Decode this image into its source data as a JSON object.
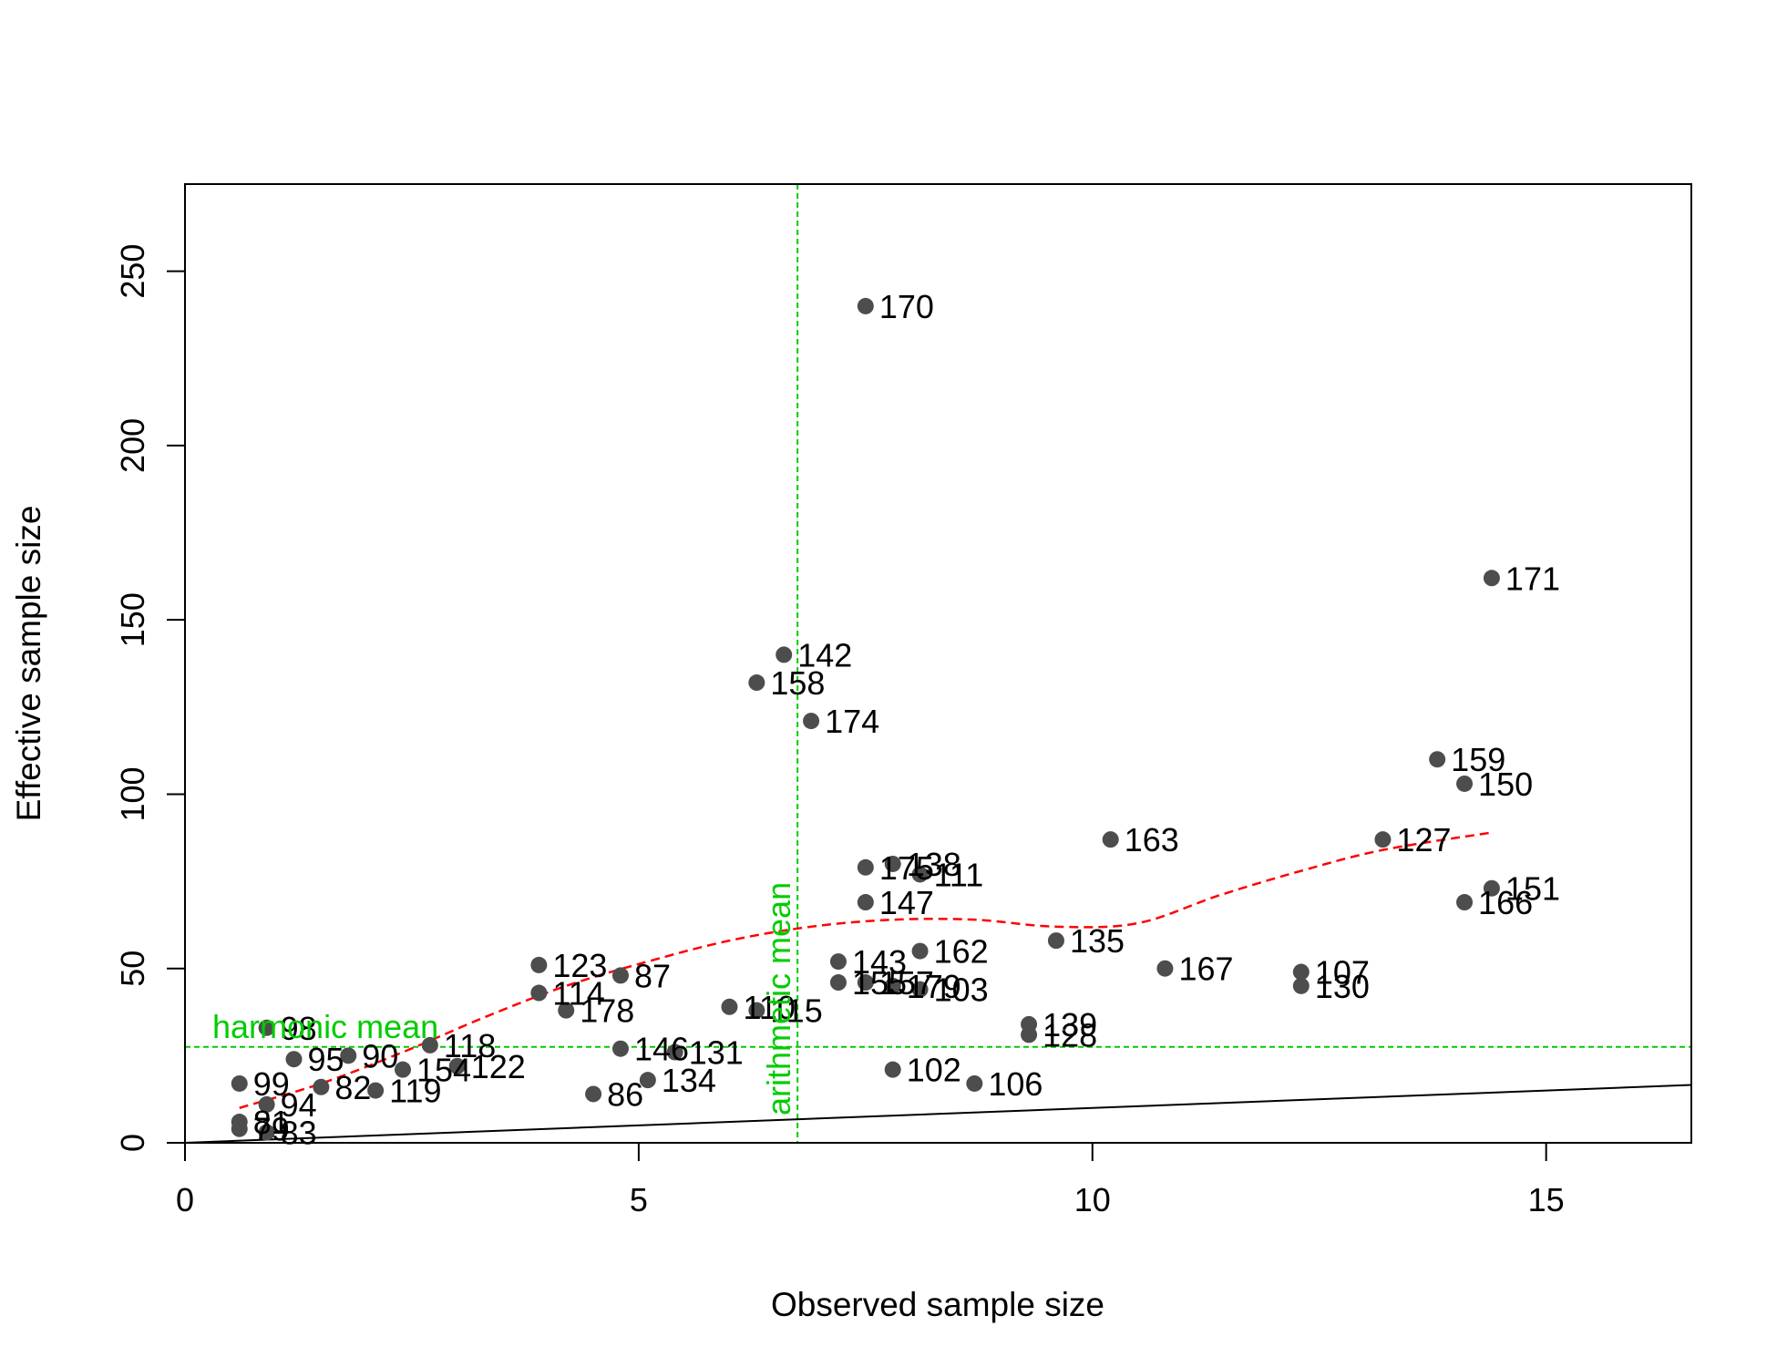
{
  "chart_data": {
    "type": "scatter",
    "title": "",
    "xlabel": "Observed sample size",
    "ylabel": "Effective sample size",
    "xlim": [
      0,
      16.6
    ],
    "ylim": [
      0,
      275
    ],
    "xticks": [
      0,
      5,
      10,
      15
    ],
    "yticks": [
      0,
      50,
      100,
      150,
      200,
      250
    ],
    "grid": false,
    "legend": "none",
    "colors": {
      "points": "#4d4d4d",
      "smooth": "#ff0000",
      "reference": "#00cc00",
      "identity": "#000000"
    },
    "points": [
      {
        "label": "170",
        "x": 7.5,
        "y": 240
      },
      {
        "label": "171",
        "x": 14.4,
        "y": 162
      },
      {
        "label": "142",
        "x": 6.6,
        "y": 140
      },
      {
        "label": "158",
        "x": 6.3,
        "y": 132
      },
      {
        "label": "174",
        "x": 6.9,
        "y": 121
      },
      {
        "label": "159",
        "x": 13.8,
        "y": 110
      },
      {
        "label": "150",
        "x": 14.1,
        "y": 103
      },
      {
        "label": "163",
        "x": 10.2,
        "y": 87
      },
      {
        "label": "127",
        "x": 13.2,
        "y": 87
      },
      {
        "label": "175",
        "x": 7.5,
        "y": 79
      },
      {
        "label": "138",
        "x": 7.8,
        "y": 80
      },
      {
        "label": "111",
        "x": 8.1,
        "y": 77
      },
      {
        "label": "147",
        "x": 7.5,
        "y": 69
      },
      {
        "label": "151",
        "x": 14.4,
        "y": 73
      },
      {
        "label": "166",
        "x": 14.1,
        "y": 69
      },
      {
        "label": "135",
        "x": 9.6,
        "y": 58
      },
      {
        "label": "162",
        "x": 8.1,
        "y": 55
      },
      {
        "label": "143",
        "x": 7.2,
        "y": 52
      },
      {
        "label": "123",
        "x": 3.9,
        "y": 51
      },
      {
        "label": "167",
        "x": 10.8,
        "y": 50
      },
      {
        "label": "107",
        "x": 12.3,
        "y": 49
      },
      {
        "label": "87",
        "x": 4.8,
        "y": 48
      },
      {
        "label": "130",
        "x": 12.3,
        "y": 45
      },
      {
        "label": "155",
        "x": 7.2,
        "y": 46
      },
      {
        "label": "157",
        "x": 7.5,
        "y": 46
      },
      {
        "label": "179",
        "x": 7.8,
        "y": 45
      },
      {
        "label": "103",
        "x": 8.1,
        "y": 44
      },
      {
        "label": "114",
        "x": 3.9,
        "y": 43
      },
      {
        "label": "110",
        "x": 6.0,
        "y": 39
      },
      {
        "label": "115",
        "x": 6.3,
        "y": 38
      },
      {
        "label": "178",
        "x": 4.2,
        "y": 38
      },
      {
        "label": "139",
        "x": 9.3,
        "y": 34
      },
      {
        "label": "128",
        "x": 9.3,
        "y": 31
      },
      {
        "label": "98",
        "x": 0.9,
        "y": 33
      },
      {
        "label": "118",
        "x": 2.7,
        "y": 28
      },
      {
        "label": "146",
        "x": 4.8,
        "y": 27
      },
      {
        "label": "131",
        "x": 5.4,
        "y": 26
      },
      {
        "label": "90",
        "x": 1.8,
        "y": 25
      },
      {
        "label": "95",
        "x": 1.2,
        "y": 24
      },
      {
        "label": "154",
        "x": 2.4,
        "y": 21
      },
      {
        "label": "122",
        "x": 3.0,
        "y": 22
      },
      {
        "label": "102",
        "x": 7.8,
        "y": 21
      },
      {
        "label": "134",
        "x": 5.1,
        "y": 18
      },
      {
        "label": "106",
        "x": 8.7,
        "y": 17
      },
      {
        "label": "99",
        "x": 0.6,
        "y": 17
      },
      {
        "label": "82",
        "x": 1.5,
        "y": 16
      },
      {
        "label": "119",
        "x": 2.1,
        "y": 15
      },
      {
        "label": "86",
        "x": 4.5,
        "y": 14
      },
      {
        "label": "94",
        "x": 0.9,
        "y": 11
      },
      {
        "label": "81",
        "x": 0.6,
        "y": 6
      },
      {
        "label": "79",
        "x": 0.6,
        "y": 4
      },
      {
        "label": "83",
        "x": 0.9,
        "y": 3
      }
    ],
    "smooth_curve": {
      "x": [
        0.6,
        1.5,
        2.4,
        3.3,
        4.2,
        5.1,
        6.0,
        6.9,
        7.8,
        8.7,
        9.6,
        10.5,
        11.4,
        12.3,
        13.2,
        14.4
      ],
      "y": [
        10,
        17,
        26,
        36,
        45,
        52,
        58,
        62,
        64,
        64,
        62,
        63,
        71,
        78,
        84,
        89
      ]
    },
    "identity_line": {
      "x": [
        0,
        16.6
      ],
      "y": [
        0,
        16.6
      ]
    },
    "harmonic_mean": {
      "label": "harmonic mean",
      "y": 27.5
    },
    "arithmetic_mean": {
      "label": "arithmetic mean",
      "x": 6.75
    }
  }
}
